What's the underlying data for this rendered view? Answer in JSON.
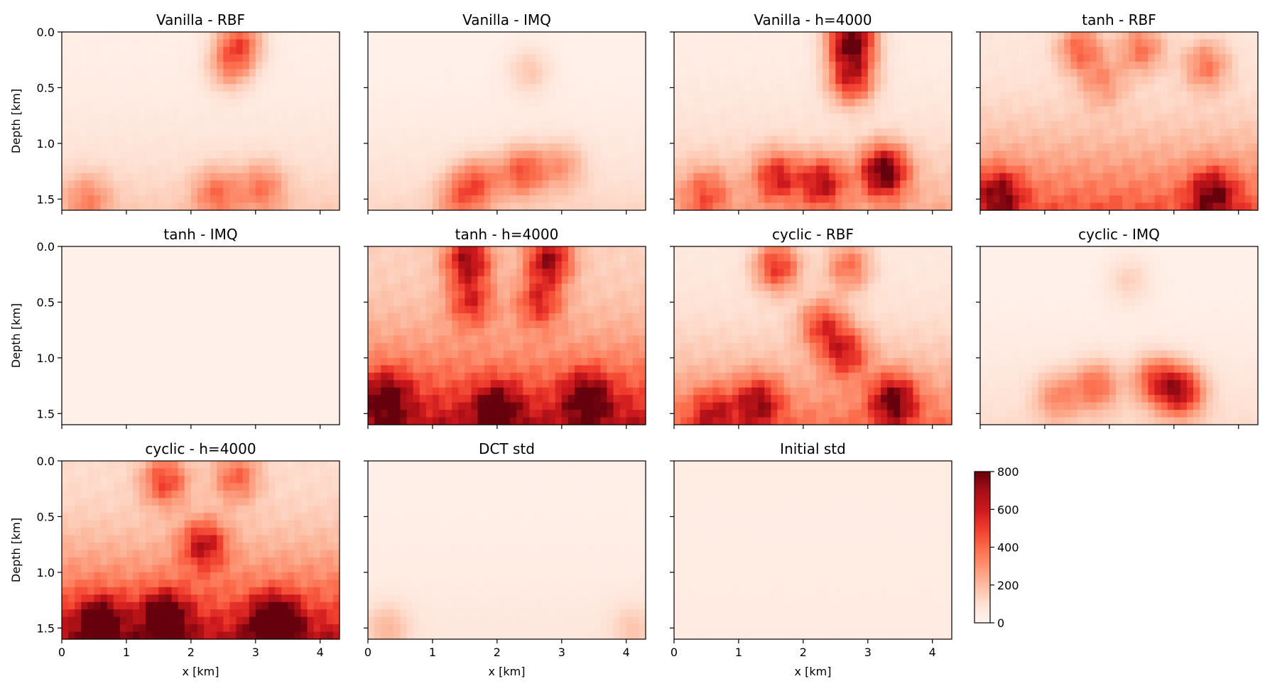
{
  "chart_data": {
    "type": "heatmap",
    "colormap": "Reds",
    "xlabel": "x [km]",
    "ylabel": "Depth [km]",
    "x_range": [
      0,
      4.3
    ],
    "y_range": [
      0,
      1.6
    ],
    "y_inverted": true,
    "x_ticks": [
      "0",
      "1",
      "2",
      "3",
      "4"
    ],
    "y_ticks": [
      "0.0",
      "0.5",
      "1.0",
      "1.5"
    ],
    "colorbar": {
      "range": [
        0,
        800
      ],
      "ticks": [
        "0",
        "200",
        "400",
        "600",
        "800"
      ]
    },
    "panels": [
      {
        "title": "Vanilla - RBF",
        "base": 30,
        "depth_gain": 130,
        "spots": [
          [
            2.75,
            0.1,
            380
          ],
          [
            2.6,
            0.32,
            240
          ],
          [
            2.4,
            1.45,
            260
          ],
          [
            3.1,
            1.4,
            240
          ],
          [
            0.4,
            1.5,
            200
          ]
        ]
      },
      {
        "title": "Vanilla - IMQ",
        "base": 20,
        "depth_gain": 110,
        "spots": [
          [
            2.5,
            0.35,
            140
          ],
          [
            1.7,
            1.35,
            300
          ],
          [
            2.4,
            1.25,
            360
          ],
          [
            3.0,
            1.2,
            200
          ],
          [
            1.4,
            1.5,
            220
          ]
        ]
      },
      {
        "title": "Vanilla - h=4000",
        "base": 40,
        "depth_gain": 200,
        "spots": [
          [
            2.75,
            0.08,
            800
          ],
          [
            2.75,
            0.42,
            520
          ],
          [
            3.25,
            1.25,
            720
          ],
          [
            2.3,
            1.35,
            480
          ],
          [
            1.6,
            1.3,
            420
          ],
          [
            0.5,
            1.45,
            260
          ]
        ]
      },
      {
        "title": "tanh - RBF",
        "base": 70,
        "depth_gain": 380,
        "spots": [
          [
            1.55,
            0.15,
            330
          ],
          [
            2.5,
            0.15,
            300
          ],
          [
            3.5,
            0.3,
            280
          ],
          [
            1.9,
            0.45,
            200
          ],
          [
            3.6,
            1.45,
            460
          ],
          [
            0.3,
            1.45,
            420
          ]
        ]
      },
      {
        "title": "tanh - IMQ",
        "base": 22,
        "depth_gain": 0,
        "spots": []
      },
      {
        "title": "tanh - h=4000",
        "base": 140,
        "depth_gain": 520,
        "spots": [
          [
            1.55,
            0.12,
            560
          ],
          [
            2.8,
            0.12,
            560
          ],
          [
            1.6,
            0.5,
            360
          ],
          [
            2.65,
            0.5,
            360
          ],
          [
            0.3,
            1.35,
            420
          ],
          [
            3.4,
            1.35,
            440
          ],
          [
            2.0,
            1.45,
            400
          ]
        ]
      },
      {
        "title": "cyclic - RBF",
        "base": 60,
        "depth_gain": 320,
        "spots": [
          [
            1.6,
            0.18,
            460
          ],
          [
            2.7,
            0.18,
            320
          ],
          [
            2.3,
            0.7,
            380
          ],
          [
            2.65,
            0.95,
            420
          ],
          [
            3.4,
            1.38,
            560
          ],
          [
            1.3,
            1.4,
            440
          ],
          [
            0.6,
            1.5,
            320
          ]
        ]
      },
      {
        "title": "cyclic - IMQ",
        "base": 20,
        "depth_gain": 90,
        "spots": [
          [
            2.3,
            0.3,
            120
          ],
          [
            3.1,
            1.3,
            560
          ],
          [
            2.7,
            1.2,
            360
          ],
          [
            1.8,
            1.25,
            320
          ],
          [
            1.2,
            1.35,
            240
          ]
        ]
      },
      {
        "title": "cyclic - h=4000",
        "base": 110,
        "depth_gain": 560,
        "spots": [
          [
            1.6,
            0.18,
            380
          ],
          [
            2.7,
            0.15,
            300
          ],
          [
            2.2,
            0.75,
            440
          ],
          [
            3.3,
            1.45,
            720
          ],
          [
            1.6,
            1.4,
            520
          ],
          [
            0.6,
            1.45,
            480
          ]
        ]
      },
      {
        "title": "DCT std",
        "base": 28,
        "depth_gain": 40,
        "spots": [
          [
            0.3,
            1.5,
            150
          ],
          [
            4.1,
            1.5,
            110
          ]
        ]
      },
      {
        "title": "Initial std",
        "base": 40,
        "depth_gain": 10,
        "spots": []
      }
    ]
  }
}
